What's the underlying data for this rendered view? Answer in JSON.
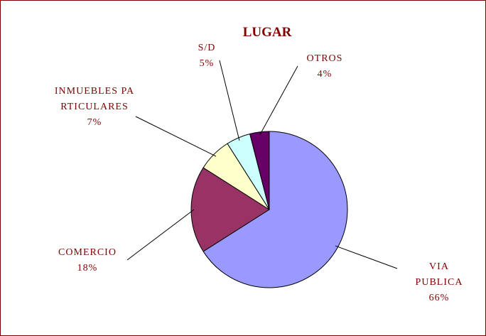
{
  "chart_data": {
    "type": "pie",
    "title": "LUGAR",
    "categories": [
      "VIA PUBLICA",
      "COMERCIO",
      "INMUEBLES PARTICULARES",
      "S/D",
      "OTROS"
    ],
    "values": [
      66,
      18,
      7,
      5,
      4
    ],
    "value_labels": [
      "66%",
      "18%",
      "7%",
      "5%",
      "4%"
    ],
    "colors": [
      "#9999ff",
      "#993366",
      "#ffffcc",
      "#ccffff",
      "#660066"
    ]
  }
}
